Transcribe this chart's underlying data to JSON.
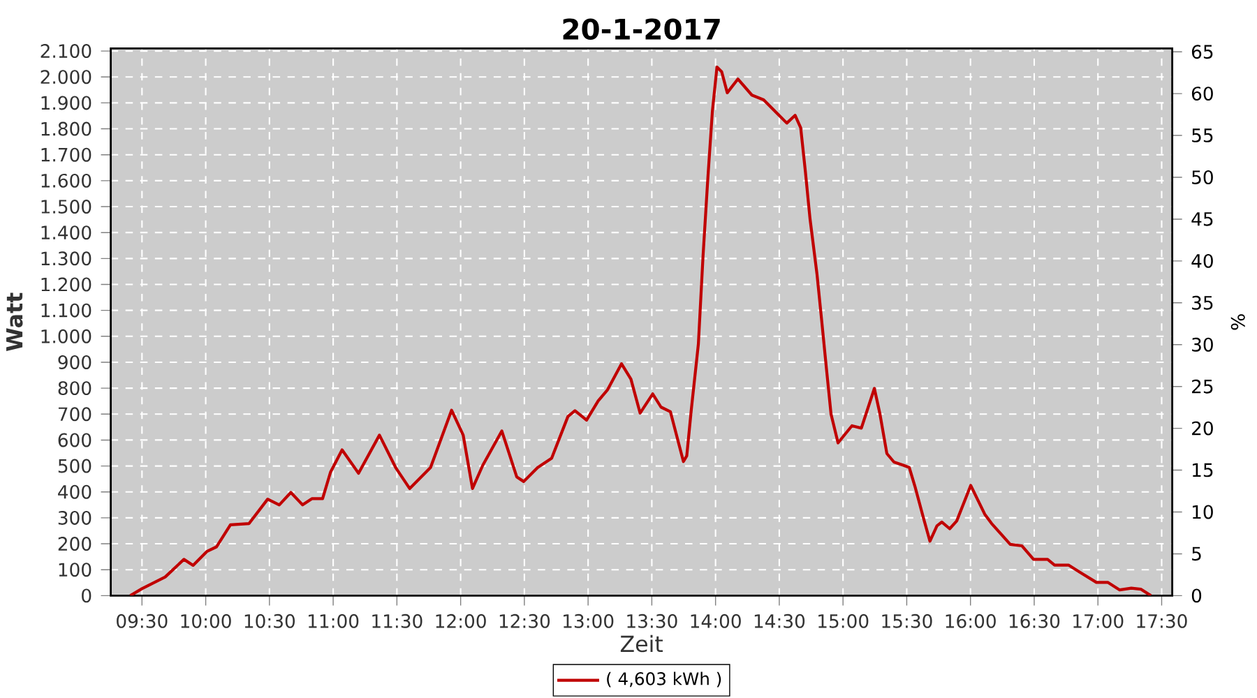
{
  "chart_data": {
    "type": "line",
    "title": "20-1-2017",
    "xlabel": "Zeit",
    "ylabel": "Watt",
    "y2label": "%",
    "xlim": [
      9.255,
      17.583
    ],
    "ylim": [
      0,
      2110
    ],
    "y2lim": [
      0,
      65.4
    ],
    "xticks": [
      {
        "value": 9.5,
        "label": "09:30"
      },
      {
        "value": 10,
        "label": "10:00"
      },
      {
        "value": 10.5,
        "label": "10:30"
      },
      {
        "value": 11,
        "label": "11:00"
      },
      {
        "value": 11.5,
        "label": "11:30"
      },
      {
        "value": 12,
        "label": "12:00"
      },
      {
        "value": 12.5,
        "label": "12:30"
      },
      {
        "value": 13,
        "label": "13:00"
      },
      {
        "value": 13.5,
        "label": "13:30"
      },
      {
        "value": 14,
        "label": "14:00"
      },
      {
        "value": 14.5,
        "label": "14:30"
      },
      {
        "value": 15,
        "label": "15:00"
      },
      {
        "value": 15.5,
        "label": "15:30"
      },
      {
        "value": 16,
        "label": "16:00"
      },
      {
        "value": 16.5,
        "label": "16:30"
      },
      {
        "value": 17,
        "label": "17:00"
      },
      {
        "value": 17.5,
        "label": "17:30"
      }
    ],
    "yticks": [
      0,
      100,
      200,
      300,
      400,
      500,
      600,
      700,
      800,
      900,
      {
        "value": 1000,
        "label": "1.000"
      },
      {
        "value": 1100,
        "label": "1.100"
      },
      {
        "value": 1200,
        "label": "1.200"
      },
      {
        "value": 1300,
        "label": "1.300"
      },
      {
        "value": 1400,
        "label": "1.400"
      },
      {
        "value": 1500,
        "label": "1.500"
      },
      {
        "value": 1600,
        "label": "1.600"
      },
      {
        "value": 1700,
        "label": "1.700"
      },
      {
        "value": 1800,
        "label": "1.800"
      },
      {
        "value": 1900,
        "label": "1.900"
      },
      {
        "value": 2000,
        "label": "2.000"
      },
      {
        "value": 2100,
        "label": "2.100"
      }
    ],
    "y2ticks": [
      0,
      5,
      10,
      15,
      20,
      25,
      30,
      35,
      40,
      45,
      50,
      55,
      60,
      65
    ],
    "grid": true,
    "legend": "bottom",
    "series": [
      {
        "name": "( 4,603 kWh )",
        "color": "#c00000",
        "x": [
          9.408,
          9.5,
          9.682,
          9.829,
          9.901,
          10.011,
          10.084,
          10.194,
          10.34,
          10.486,
          10.577,
          10.668,
          10.76,
          10.833,
          10.917,
          10.979,
          11.07,
          11.199,
          11.363,
          11.49,
          11.6,
          11.764,
          11.929,
          12.02,
          12.093,
          12.174,
          12.323,
          12.44,
          12.495,
          12.605,
          12.714,
          12.842,
          12.897,
          12.988,
          13.079,
          13.153,
          13.262,
          13.336,
          13.408,
          13.507,
          13.572,
          13.646,
          13.748,
          13.774,
          13.81,
          13.865,
          13.902,
          13.938,
          13.975,
          14.011,
          14.048,
          14.092,
          14.175,
          14.285,
          14.377,
          14.486,
          14.559,
          14.624,
          14.668,
          14.705,
          14.741,
          14.796,
          14.833,
          14.869,
          14.906,
          14.961,
          15.07,
          15.144,
          15.246,
          15.29,
          15.344,
          15.4,
          15.473,
          15.52,
          15.564,
          15.628,
          15.682,
          15.737,
          15.775,
          15.837,
          15.892,
          16.002,
          16.112,
          16.166,
          16.312,
          16.404,
          16.495,
          16.605,
          16.66,
          16.769,
          16.86,
          16.988,
          17.079,
          17.171,
          17.262,
          17.336,
          17.416
        ],
        "values": [
          0,
          27,
          72,
          140,
          117,
          171,
          188,
          273,
          278,
          372,
          350,
          398,
          350,
          374,
          374,
          476,
          562,
          472,
          619,
          494,
          413,
          494,
          715,
          619,
          413,
          503,
          635,
          458,
          440,
          494,
          530,
          691,
          713,
          677,
          751,
          794,
          894,
          835,
          704,
          778,
          727,
          709,
          517,
          539,
          718,
          969,
          1311,
          1598,
          1867,
          2038,
          2020,
          1939,
          1992,
          1930,
          1912,
          1858,
          1822,
          1852,
          1804,
          1634,
          1454,
          1239,
          1059,
          880,
          700,
          589,
          655,
          646,
          799,
          700,
          548,
          515,
          503,
          494,
          422,
          305,
          210,
          269,
          284,
          258,
          288,
          425,
          314,
          278,
          198,
          192,
          140,
          140,
          118,
          118,
          90,
          51,
          51,
          22,
          29,
          25,
          0
        ]
      }
    ]
  }
}
